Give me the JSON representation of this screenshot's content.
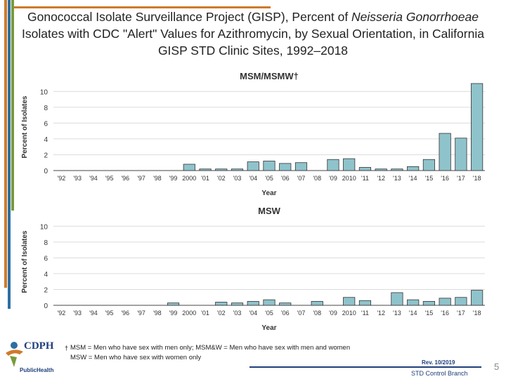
{
  "title": {
    "pre": "Gonococcal Isolate Surveillance Project (GISP), Percent of ",
    "italic": "Neisseria Gonorrhoeae",
    "post": " Isolates with CDC \"Alert\" Values for Azithromycin, by Sexual Orientation, in California GISP STD Clinic Sites, 1992–2018"
  },
  "colors": {
    "bar_fill": "#8fc3cc",
    "bar_stroke": "#333333",
    "accent_orange": "#d07a2a",
    "accent_blue": "#2d6fa3",
    "accent_green": "#7a9a3a",
    "brand_navy": "#1f3f7a"
  },
  "chart_data": [
    {
      "type": "bar",
      "title": "MSM/MSMW†",
      "xlabel": "Year",
      "ylabel": "Percent of Isolates",
      "ylim": [
        0,
        11
      ],
      "yticks": [
        0,
        2,
        4,
        6,
        8,
        10
      ],
      "grid": true,
      "categories": [
        "'92",
        "'93",
        "'94",
        "'95",
        "'96",
        "'97",
        "'98",
        "'99",
        "2000",
        "'01",
        "'02",
        "'03",
        "'04",
        "'05",
        "'06",
        "'07",
        "'08",
        "'09",
        "2010",
        "'11",
        "'12",
        "'13",
        "'14",
        "'15",
        "'16",
        "'17",
        "'18"
      ],
      "values": [
        0,
        0,
        0,
        0,
        0,
        0,
        0,
        0,
        0.8,
        0.2,
        0.2,
        0.2,
        1.1,
        1.2,
        0.9,
        1.0,
        0,
        1.4,
        1.5,
        0.4,
        0.2,
        0.2,
        0.5,
        1.4,
        4.7,
        4.1,
        11.0
      ]
    },
    {
      "type": "bar",
      "title": "MSW",
      "xlabel": "Year",
      "ylabel": "Percent of Isolates",
      "ylim": [
        0,
        11
      ],
      "yticks": [
        0,
        2,
        4,
        6,
        8,
        10
      ],
      "grid": true,
      "categories": [
        "'92",
        "'93",
        "'94",
        "'95",
        "'96",
        "'97",
        "'98",
        "'99",
        "2000",
        "'01",
        "'02",
        "'03",
        "'04",
        "'05",
        "'06",
        "'07",
        "'08",
        "'09",
        "2010",
        "'11",
        "'12",
        "'13",
        "'14",
        "'15",
        "'16",
        "'17",
        "'18"
      ],
      "values": [
        0,
        0,
        0,
        0,
        0,
        0,
        0,
        0.3,
        0,
        0,
        0.4,
        0.3,
        0.5,
        0.7,
        0.3,
        0,
        0.5,
        0,
        1.0,
        0.6,
        0,
        1.6,
        0.7,
        0.5,
        0.9,
        1.0,
        1.9
      ]
    }
  ],
  "footnote": {
    "dagger": "†",
    "line1": "MSM = Men who have sex with men only; MSM&W = Men who have sex with men and women",
    "line2": "MSW = Men who have sex with women only"
  },
  "rev": "Rev. 10/2019",
  "branch": "STD Control Branch",
  "page_number": "5",
  "logo": {
    "name": "CDPH",
    "sub": "PublicHealth"
  }
}
